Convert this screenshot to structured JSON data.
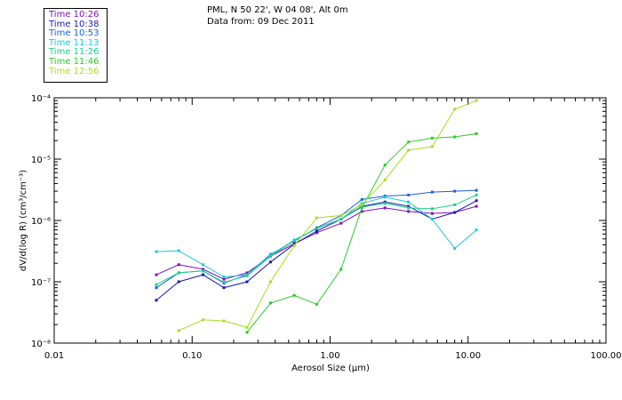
{
  "header": {
    "line1": "PML, N 50 22', W 04 08', Alt 0m",
    "line2": "Data from: 09 Dec 2011"
  },
  "legend": [
    {
      "label": "Time 10:26",
      "color": "#7a14b8"
    },
    {
      "label": "Time 10:38",
      "color": "#1a1aa8"
    },
    {
      "label": "Time 10:53",
      "color": "#1c5fd6"
    },
    {
      "label": "Time 11:13",
      "color": "#22c4dc"
    },
    {
      "label": "Time 11:26",
      "color": "#1ed08a"
    },
    {
      "label": "Time 11:46",
      "color": "#2ec82e"
    },
    {
      "label": "Time 12:56",
      "color": "#aadc2a"
    }
  ],
  "chart_data": {
    "type": "line",
    "x_scale": "log",
    "y_scale": "log",
    "xlim": [
      0.01,
      100
    ],
    "ylim": [
      1e-08,
      0.0001
    ],
    "xlabel": "Aerosol Size (μm)",
    "ylabel": "dV/d(log R) (cm³/cm⁻³)",
    "x_ticks": [
      {
        "value": 0.01,
        "label": "0.01"
      },
      {
        "value": 0.1,
        "label": "0.10"
      },
      {
        "value": 1,
        "label": "1.00"
      },
      {
        "value": 10,
        "label": "10.00"
      },
      {
        "value": 100,
        "label": "100.00"
      }
    ],
    "y_ticks": [
      {
        "value": 1e-08,
        "label": "10⁻⁸"
      },
      {
        "value": 1e-07,
        "label": "10⁻⁷"
      },
      {
        "value": 1e-06,
        "label": "10⁻⁶"
      },
      {
        "value": 1e-05,
        "label": "10⁻⁵"
      },
      {
        "value": 0.0001,
        "label": "10⁻⁴"
      }
    ],
    "x": [
      0.055,
      0.08,
      0.12,
      0.17,
      0.25,
      0.37,
      0.55,
      0.8,
      1.2,
      1.7,
      2.5,
      3.7,
      5.5,
      8,
      11.5
    ],
    "series": [
      {
        "name": "Time 10:26",
        "color": "#7a14b8",
        "values": [
          1.3e-07,
          1.9e-07,
          1.6e-07,
          1.1e-07,
          1.4e-07,
          2.6e-07,
          4.2e-07,
          6.3e-07,
          9e-07,
          1.4e-06,
          1.6e-06,
          1.4e-06,
          1.3e-06,
          1.35e-06,
          1.7e-06
        ]
      },
      {
        "name": "Time 10:38",
        "color": "#1a1aa8",
        "values": [
          5e-08,
          1e-07,
          1.3e-07,
          8e-08,
          1e-07,
          2.1e-07,
          4.1e-07,
          6.7e-07,
          1.05e-06,
          1.7e-06,
          2e-06,
          1.7e-06,
          1.05e-06,
          1.35e-06,
          2.1e-06
        ]
      },
      {
        "name": "Time 10:53",
        "color": "#1c5fd6",
        "values": [
          8e-08,
          1.4e-07,
          1.5e-07,
          9.5e-08,
          1.3e-07,
          2.8e-07,
          4.6e-07,
          7.6e-07,
          1.2e-06,
          2.2e-06,
          2.5e-06,
          2.6e-06,
          2.9e-06,
          3e-06,
          3.1e-06
        ]
      },
      {
        "name": "Time 11:13",
        "color": "#22c4dc",
        "values": [
          3.1e-07,
          3.2e-07,
          1.9e-07,
          1.2e-07,
          1.3e-07,
          2.7e-07,
          4.8e-07,
          7.4e-07,
          1.05e-06,
          1.9e-06,
          2.4e-06,
          2e-06,
          1.05e-06,
          3.5e-07,
          7e-07
        ]
      },
      {
        "name": "Time 11:26",
        "color": "#1ed08a",
        "values": [
          9e-08,
          1.4e-07,
          1.5e-07,
          9.8e-08,
          1.25e-07,
          2.6e-07,
          4.7e-07,
          7.4e-07,
          1.05e-06,
          1.65e-06,
          1.9e-06,
          1.6e-06,
          1.55e-06,
          1.8e-06,
          2.6e-06
        ]
      },
      {
        "name": "Time 11:46",
        "color": "#2ec82e",
        "values": [
          null,
          null,
          null,
          null,
          1.5e-08,
          4.5e-08,
          6e-08,
          4.3e-08,
          1.6e-07,
          1.6e-06,
          8e-06,
          1.9e-05,
          2.2e-05,
          2.3e-05,
          2.6e-05
        ]
      },
      {
        "name": "Time 12:56",
        "color": "#aadc2a",
        "values": [
          null,
          1.6e-08,
          2.4e-08,
          2.3e-08,
          1.8e-08,
          1e-07,
          3.9e-07,
          1.1e-06,
          1.2e-06,
          1.8e-06,
          4.6e-06,
          1.4e-05,
          1.6e-05,
          6.5e-05,
          9e-05
        ]
      }
    ]
  }
}
